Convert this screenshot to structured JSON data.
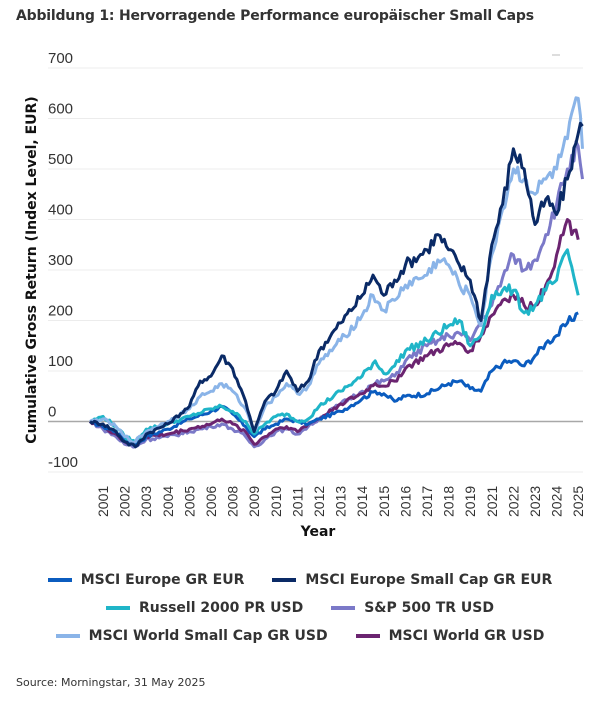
{
  "title": "Abbildung 1: Hervorragende Performance europäischer Small Caps",
  "source": "Source: Morningstar, 31 May 2025",
  "chart_data": {
    "type": "line",
    "title": "Abbildung 1: Hervorragende Performance europäischer Small Caps",
    "xlabel": "Year",
    "ylabel": "Cumulative Gross Return (Index Level, EUR)",
    "ylim": [
      -100,
      700
    ],
    "yticks": [
      -100,
      0,
      100,
      200,
      300,
      400,
      500,
      600,
      700
    ],
    "xtick_labels": [
      "2001",
      "2002",
      "2003",
      "2004",
      "2005",
      "2006",
      "2008",
      "2009",
      "2010",
      "2011",
      "2012",
      "2013",
      "2014",
      "2015",
      "2016",
      "2017",
      "2018",
      "2019",
      "2021",
      "2022",
      "2023",
      "2024",
      "2025"
    ],
    "grid": true,
    "legend_position": "bottom",
    "x_note": "points are [x-tick index, value]; tick index 0 = 2001 label, 22 = 2025 label",
    "series": [
      {
        "name": "MSCI Europe GR EUR",
        "color": "#0b5cbf",
        "points": [
          [
            -0.6,
            0
          ],
          [
            0,
            -10
          ],
          [
            0.6,
            -20
          ],
          [
            1,
            -35
          ],
          [
            1.5,
            -45
          ],
          [
            2,
            -30
          ],
          [
            3,
            -15
          ],
          [
            4,
            5
          ],
          [
            5,
            20
          ],
          [
            5.5,
            30
          ],
          [
            6,
            15
          ],
          [
            6.6,
            -10
          ],
          [
            7,
            -30
          ],
          [
            7.5,
            -15
          ],
          [
            8,
            -5
          ],
          [
            8.5,
            5
          ],
          [
            9,
            0
          ],
          [
            9.5,
            -5
          ],
          [
            10,
            5
          ],
          [
            11,
            20
          ],
          [
            12,
            45
          ],
          [
            12.6,
            60
          ],
          [
            13,
            55
          ],
          [
            13.5,
            40
          ],
          [
            14,
            50
          ],
          [
            15,
            55
          ],
          [
            16,
            75
          ],
          [
            16.5,
            80
          ],
          [
            17,
            65
          ],
          [
            17.5,
            60
          ],
          [
            18,
            100
          ],
          [
            18.5,
            115
          ],
          [
            19,
            120
          ],
          [
            19.5,
            110
          ],
          [
            20,
            130
          ],
          [
            20.5,
            155
          ],
          [
            21,
            170
          ],
          [
            21.5,
            195
          ],
          [
            22,
            215
          ]
        ]
      },
      {
        "name": "MSCI Europe Small Cap GR EUR",
        "color": "#0a2a66",
        "points": [
          [
            -0.6,
            0
          ],
          [
            0,
            -5
          ],
          [
            0.6,
            -20
          ],
          [
            1,
            -40
          ],
          [
            1.5,
            -50
          ],
          [
            2,
            -25
          ],
          [
            3,
            -5
          ],
          [
            4,
            30
          ],
          [
            4.5,
            80
          ],
          [
            5,
            90
          ],
          [
            5.5,
            130
          ],
          [
            6,
            105
          ],
          [
            6.6,
            40
          ],
          [
            7,
            -20
          ],
          [
            7.5,
            40
          ],
          [
            8,
            60
          ],
          [
            8.5,
            100
          ],
          [
            9,
            60
          ],
          [
            9.5,
            80
          ],
          [
            10,
            140
          ],
          [
            11,
            195
          ],
          [
            12,
            250
          ],
          [
            12.5,
            290
          ],
          [
            13,
            250
          ],
          [
            13.5,
            280
          ],
          [
            14,
            310
          ],
          [
            15,
            340
          ],
          [
            15.5,
            370
          ],
          [
            16,
            340
          ],
          [
            16.5,
            310
          ],
          [
            17,
            280
          ],
          [
            17.5,
            200
          ],
          [
            18,
            350
          ],
          [
            18.5,
            430
          ],
          [
            19,
            540
          ],
          [
            19.5,
            500
          ],
          [
            20,
            390
          ],
          [
            20.5,
            440
          ],
          [
            21,
            410
          ],
          [
            21.5,
            480
          ],
          [
            22,
            570
          ],
          [
            22.2,
            585
          ]
        ]
      },
      {
        "name": "Russell 2000 PR USD",
        "color": "#1fb5c8",
        "points": [
          [
            -0.6,
            0
          ],
          [
            0,
            10
          ],
          [
            0.6,
            -10
          ],
          [
            1,
            -30
          ],
          [
            1.5,
            -40
          ],
          [
            2,
            -15
          ],
          [
            3,
            -5
          ],
          [
            4,
            10
          ],
          [
            5,
            25
          ],
          [
            5.5,
            30
          ],
          [
            6,
            20
          ],
          [
            6.6,
            0
          ],
          [
            7,
            -25
          ],
          [
            7.5,
            -5
          ],
          [
            8,
            10
          ],
          [
            8.5,
            15
          ],
          [
            9,
            0
          ],
          [
            9.5,
            5
          ],
          [
            10,
            30
          ],
          [
            11,
            60
          ],
          [
            12,
            90
          ],
          [
            12.6,
            120
          ],
          [
            13,
            95
          ],
          [
            13.5,
            110
          ],
          [
            14,
            140
          ],
          [
            15,
            160
          ],
          [
            16,
            190
          ],
          [
            16.5,
            200
          ],
          [
            17,
            150
          ],
          [
            17.5,
            170
          ],
          [
            18,
            250
          ],
          [
            18.5,
            260
          ],
          [
            19,
            260
          ],
          [
            19.5,
            215
          ],
          [
            20,
            230
          ],
          [
            20.5,
            260
          ],
          [
            21,
            280
          ],
          [
            21.5,
            340
          ],
          [
            22,
            250
          ]
        ]
      },
      {
        "name": "S&P 500 TR USD",
        "color": "#7b79c8",
        "points": [
          [
            -0.6,
            0
          ],
          [
            0,
            -15
          ],
          [
            0.6,
            -30
          ],
          [
            1,
            -45
          ],
          [
            1.5,
            -50
          ],
          [
            2,
            -35
          ],
          [
            3,
            -30
          ],
          [
            4,
            -20
          ],
          [
            5,
            -10
          ],
          [
            5.5,
            -5
          ],
          [
            6,
            -15
          ],
          [
            6.6,
            -30
          ],
          [
            7,
            -50
          ],
          [
            7.5,
            -35
          ],
          [
            8,
            -20
          ],
          [
            8.5,
            -15
          ],
          [
            9,
            -25
          ],
          [
            9.5,
            -10
          ],
          [
            10,
            5
          ],
          [
            11,
            35
          ],
          [
            12,
            60
          ],
          [
            12.6,
            75
          ],
          [
            13,
            80
          ],
          [
            13.5,
            90
          ],
          [
            14,
            120
          ],
          [
            15,
            150
          ],
          [
            16,
            170
          ],
          [
            16.5,
            175
          ],
          [
            17,
            160
          ],
          [
            17.5,
            200
          ],
          [
            18,
            230
          ],
          [
            18.5,
            285
          ],
          [
            19,
            330
          ],
          [
            19.5,
            300
          ],
          [
            20,
            320
          ],
          [
            20.5,
            370
          ],
          [
            21,
            430
          ],
          [
            21.5,
            500
          ],
          [
            22,
            545
          ],
          [
            22.2,
            480
          ]
        ]
      },
      {
        "name": "MSCI World Small Cap GR USD",
        "color": "#8ab4e8",
        "points": [
          [
            -0.6,
            0
          ],
          [
            0,
            5
          ],
          [
            0.6,
            -10
          ],
          [
            1,
            -30
          ],
          [
            1.5,
            -40
          ],
          [
            2,
            -20
          ],
          [
            3,
            0
          ],
          [
            4,
            25
          ],
          [
            4.5,
            50
          ],
          [
            5,
            60
          ],
          [
            5.5,
            75
          ],
          [
            6,
            60
          ],
          [
            6.6,
            25
          ],
          [
            7,
            -20
          ],
          [
            7.5,
            30
          ],
          [
            8,
            50
          ],
          [
            8.5,
            75
          ],
          [
            9,
            55
          ],
          [
            9.5,
            70
          ],
          [
            10,
            115
          ],
          [
            11,
            160
          ],
          [
            12,
            210
          ],
          [
            12.5,
            250
          ],
          [
            13,
            220
          ],
          [
            13.5,
            240
          ],
          [
            14,
            270
          ],
          [
            15,
            290
          ],
          [
            15.5,
            320
          ],
          [
            16,
            310
          ],
          [
            16.5,
            270
          ],
          [
            17,
            250
          ],
          [
            17.5,
            190
          ],
          [
            18,
            330
          ],
          [
            18.5,
            420
          ],
          [
            19,
            500
          ],
          [
            19.5,
            480
          ],
          [
            20,
            450
          ],
          [
            20.5,
            480
          ],
          [
            21,
            500
          ],
          [
            21.5,
            560
          ],
          [
            22,
            640
          ],
          [
            22.2,
            540
          ]
        ]
      },
      {
        "name": "MSCI World GR USD",
        "color": "#6b2470",
        "points": [
          [
            -0.6,
            0
          ],
          [
            0,
            -10
          ],
          [
            0.6,
            -25
          ],
          [
            1,
            -40
          ],
          [
            1.5,
            -45
          ],
          [
            2,
            -30
          ],
          [
            3,
            -25
          ],
          [
            4,
            -15
          ],
          [
            5,
            -5
          ],
          [
            5.5,
            5
          ],
          [
            6,
            -5
          ],
          [
            6.6,
            -20
          ],
          [
            7,
            -45
          ],
          [
            7.5,
            -30
          ],
          [
            8,
            -15
          ],
          [
            8.5,
            -10
          ],
          [
            9,
            -20
          ],
          [
            9.5,
            -5
          ],
          [
            10,
            5
          ],
          [
            11,
            35
          ],
          [
            12,
            55
          ],
          [
            12.6,
            75
          ],
          [
            13,
            70
          ],
          [
            13.5,
            80
          ],
          [
            14,
            105
          ],
          [
            15,
            130
          ],
          [
            16,
            150
          ],
          [
            16.5,
            155
          ],
          [
            17,
            140
          ],
          [
            17.5,
            170
          ],
          [
            18,
            210
          ],
          [
            18.5,
            240
          ],
          [
            19,
            250
          ],
          [
            19.5,
            230
          ],
          [
            20,
            230
          ],
          [
            20.5,
            270
          ],
          [
            21,
            330
          ],
          [
            21.5,
            400
          ],
          [
            22,
            360
          ]
        ]
      }
    ]
  }
}
